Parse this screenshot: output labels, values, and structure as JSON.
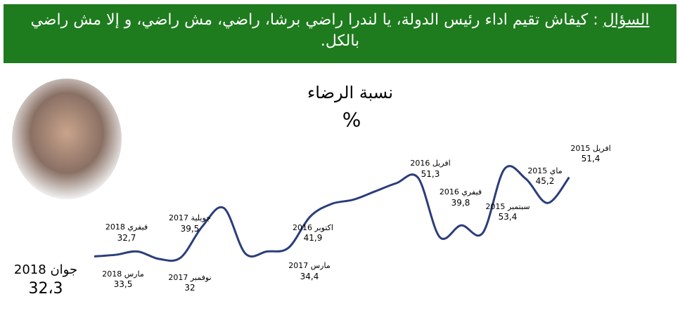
{
  "header": {
    "question_label": "السؤال",
    "question_text": " : كيفاش تقيم اداء  رئيس الدولة، يا لندرا راضي برشا، راضي، مش راضي، و إلا مش راضي بالكل."
  },
  "chart_data": {
    "type": "line",
    "title": "نسبة الرضاء",
    "subtitle": "%",
    "categories": [
      "جوان 2018",
      "فيفري 2018",
      "مارس 2018",
      null,
      "نوفمبر 2017",
      "جويلية 2017",
      null,
      null,
      null,
      "مارس 2017",
      "اكتوبر 2016",
      null,
      null,
      null,
      null,
      "افريل 2016",
      null,
      "فيفري 2016",
      null,
      "سبتمبر 2015",
      null,
      "ماي 2015",
      "افريل 2015"
    ],
    "series": [
      {
        "name": "نسبة الرضاء",
        "color": "#2b3d7a",
        "values": [
          32.3,
          32.7,
          33.5,
          31.7,
          32,
          39.5,
          44,
          33,
          33.5,
          34.4,
          41.9,
          45,
          46,
          48,
          50,
          51.3,
          37,
          39.8,
          38,
          53.4,
          51,
          45.2,
          51.4
        ],
        "value_labels": [
          "32،3",
          "32,7",
          "33,5",
          null,
          "32",
          "39,5",
          null,
          null,
          null,
          "34,4",
          "41,9",
          null,
          null,
          null,
          null,
          "51,3",
          null,
          "39,8",
          null,
          "53,4",
          null,
          "45,2",
          "51,4"
        ]
      }
    ],
    "ylim": [
      25,
      60
    ]
  }
}
